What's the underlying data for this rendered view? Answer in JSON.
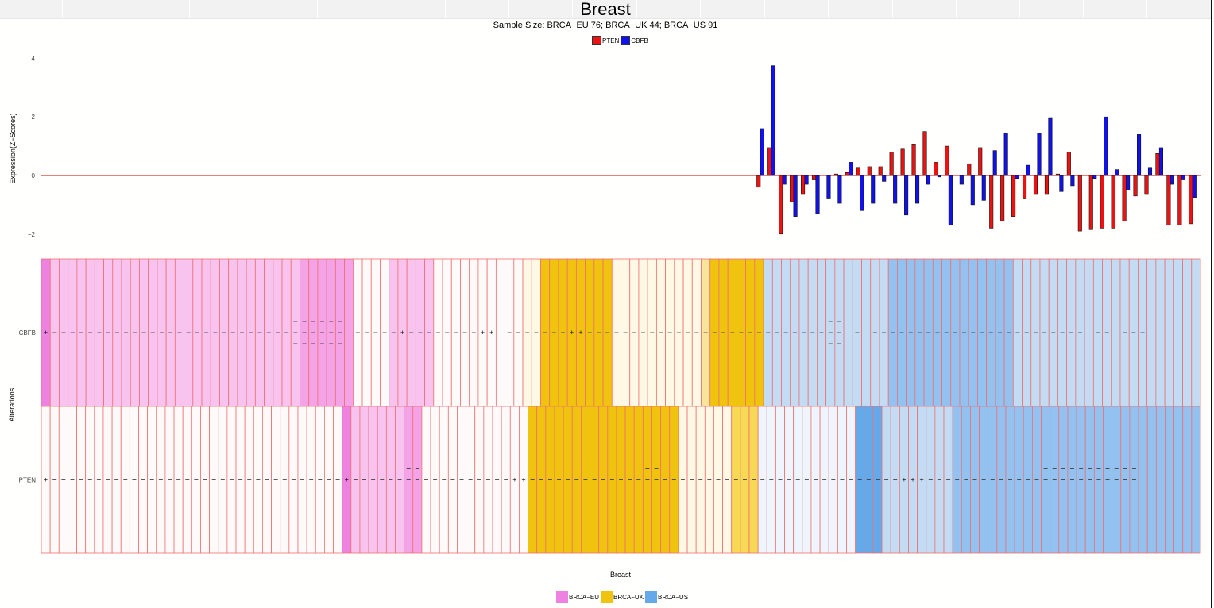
{
  "title": "Breast",
  "subtitle": "Sample Size: BRCA−EU 76; BRCA−UK 44; BRCA−US 91",
  "colors": {
    "PTEN": "#ee1111",
    "CBFB": "#1111ee",
    "BRCA−EU": "#ee82e0",
    "BRCA−UK": "#f0c30f",
    "BRCA−US": "#64aaeb"
  },
  "chart_data": [
    {
      "type": "bar",
      "title": "",
      "ylabel": "Expression(Z−Scores)",
      "xlabel": "",
      "ylim": [
        -2.7,
        4.3
      ],
      "yticks": [
        "−2",
        "0",
        "2",
        "4"
      ],
      "grid": false,
      "legend_position": "top-center",
      "series": [
        {
          "name": "PTEN",
          "values": [
            -0.4,
            0.95,
            -2.0,
            -0.9,
            -0.65,
            -0.15,
            0.0,
            0.05,
            0.1,
            0.25,
            0.3,
            0.3,
            0.8,
            0.9,
            1.05,
            1.5,
            0.45,
            1.0,
            0.0,
            0.4,
            0.95,
            -1.8,
            -1.55,
            -1.4,
            -0.8,
            -0.65,
            -0.65,
            0.05,
            0.8,
            -1.9,
            -1.85,
            -1.8,
            -1.8,
            -1.55,
            -0.7,
            -0.65,
            0.75,
            -1.7,
            -1.7,
            -1.65
          ]
        },
        {
          "name": "CBFB",
          "values": [
            1.6,
            3.75,
            -0.3,
            -1.4,
            -0.3,
            -1.3,
            -0.8,
            -0.95,
            0.45,
            -1.2,
            -0.95,
            -0.2,
            -0.95,
            -1.35,
            -0.95,
            -0.3,
            -0.05,
            -1.7,
            -0.3,
            -1.0,
            -0.85,
            0.85,
            1.45,
            -0.1,
            0.35,
            1.45,
            1.95,
            -0.55,
            -0.35,
            0.0,
            -0.1,
            2.0,
            0.2,
            -0.5,
            1.4,
            0.25,
            0.95,
            -0.3,
            -0.15,
            -0.75
          ]
        }
      ]
    },
    {
      "type": "heatmap",
      "title": "",
      "xlabel": "Breast",
      "ylabel": "Alterations",
      "rows": [
        "CBFB",
        "PTEN"
      ],
      "groups": [
        "BRCA−EU",
        "BRCA−UK",
        "BRCA−US"
      ],
      "legend_position": "bottom-center",
      "cbfb_cells": "PLLLLLLLLLLLLLLLLLLLLLLLLLLLLMMMMMMWWWWLLLLLWWWWWWWWWWWWYYYYYYYYWWWWWWWWWWLPPPPPPUUUUUUUUUUUUUUVVVVVVVVVVVVVVUUUUUUUUUUUUUUUUUUUUU",
      "pten_cells": "WWWWWWWWWWWWWWWWWWWWWWWWWWWWWWWWWWPLLLLLLMMWWWWWWWWWWWWPPPPPPYYYYYYYYYYYWWWWWWWWWWWWWWWWWWWWPPPUUUUUUUUVVVVVVVVVVVVVVVVVVVVVVVVVVVV",
      "cbfb_marks": "+ - - - - - - - - - - - - - - - - - - - - - - - - - - - = = = = = =  - - - - - + - - - - - - - - + +  - - - - - - - + + - - - - - - - - - - - - - - - - - - - - - - - - - - - = =  -  - - - - - - - - - - - - - - - - - - - - - - - -  - -  - - -",
      "pten_marks": "+ - - - - - - - - - - - - - - - - - - - - - - - - - - - - - - - - - + - - - - - - = = - - - - - - - - - - + + - - - - - - - - - - - - - = = - - - - - - - - - - - - - - - - - - - - - - - - - - - + + + - - - - - - - - - - - - - = = = = = = = = = = = "
    }
  ],
  "legend_expr": [
    "PTEN",
    "CBFB"
  ],
  "legend_groups": [
    "BRCA−EU",
    "BRCA−UK",
    "BRCA−US"
  ]
}
